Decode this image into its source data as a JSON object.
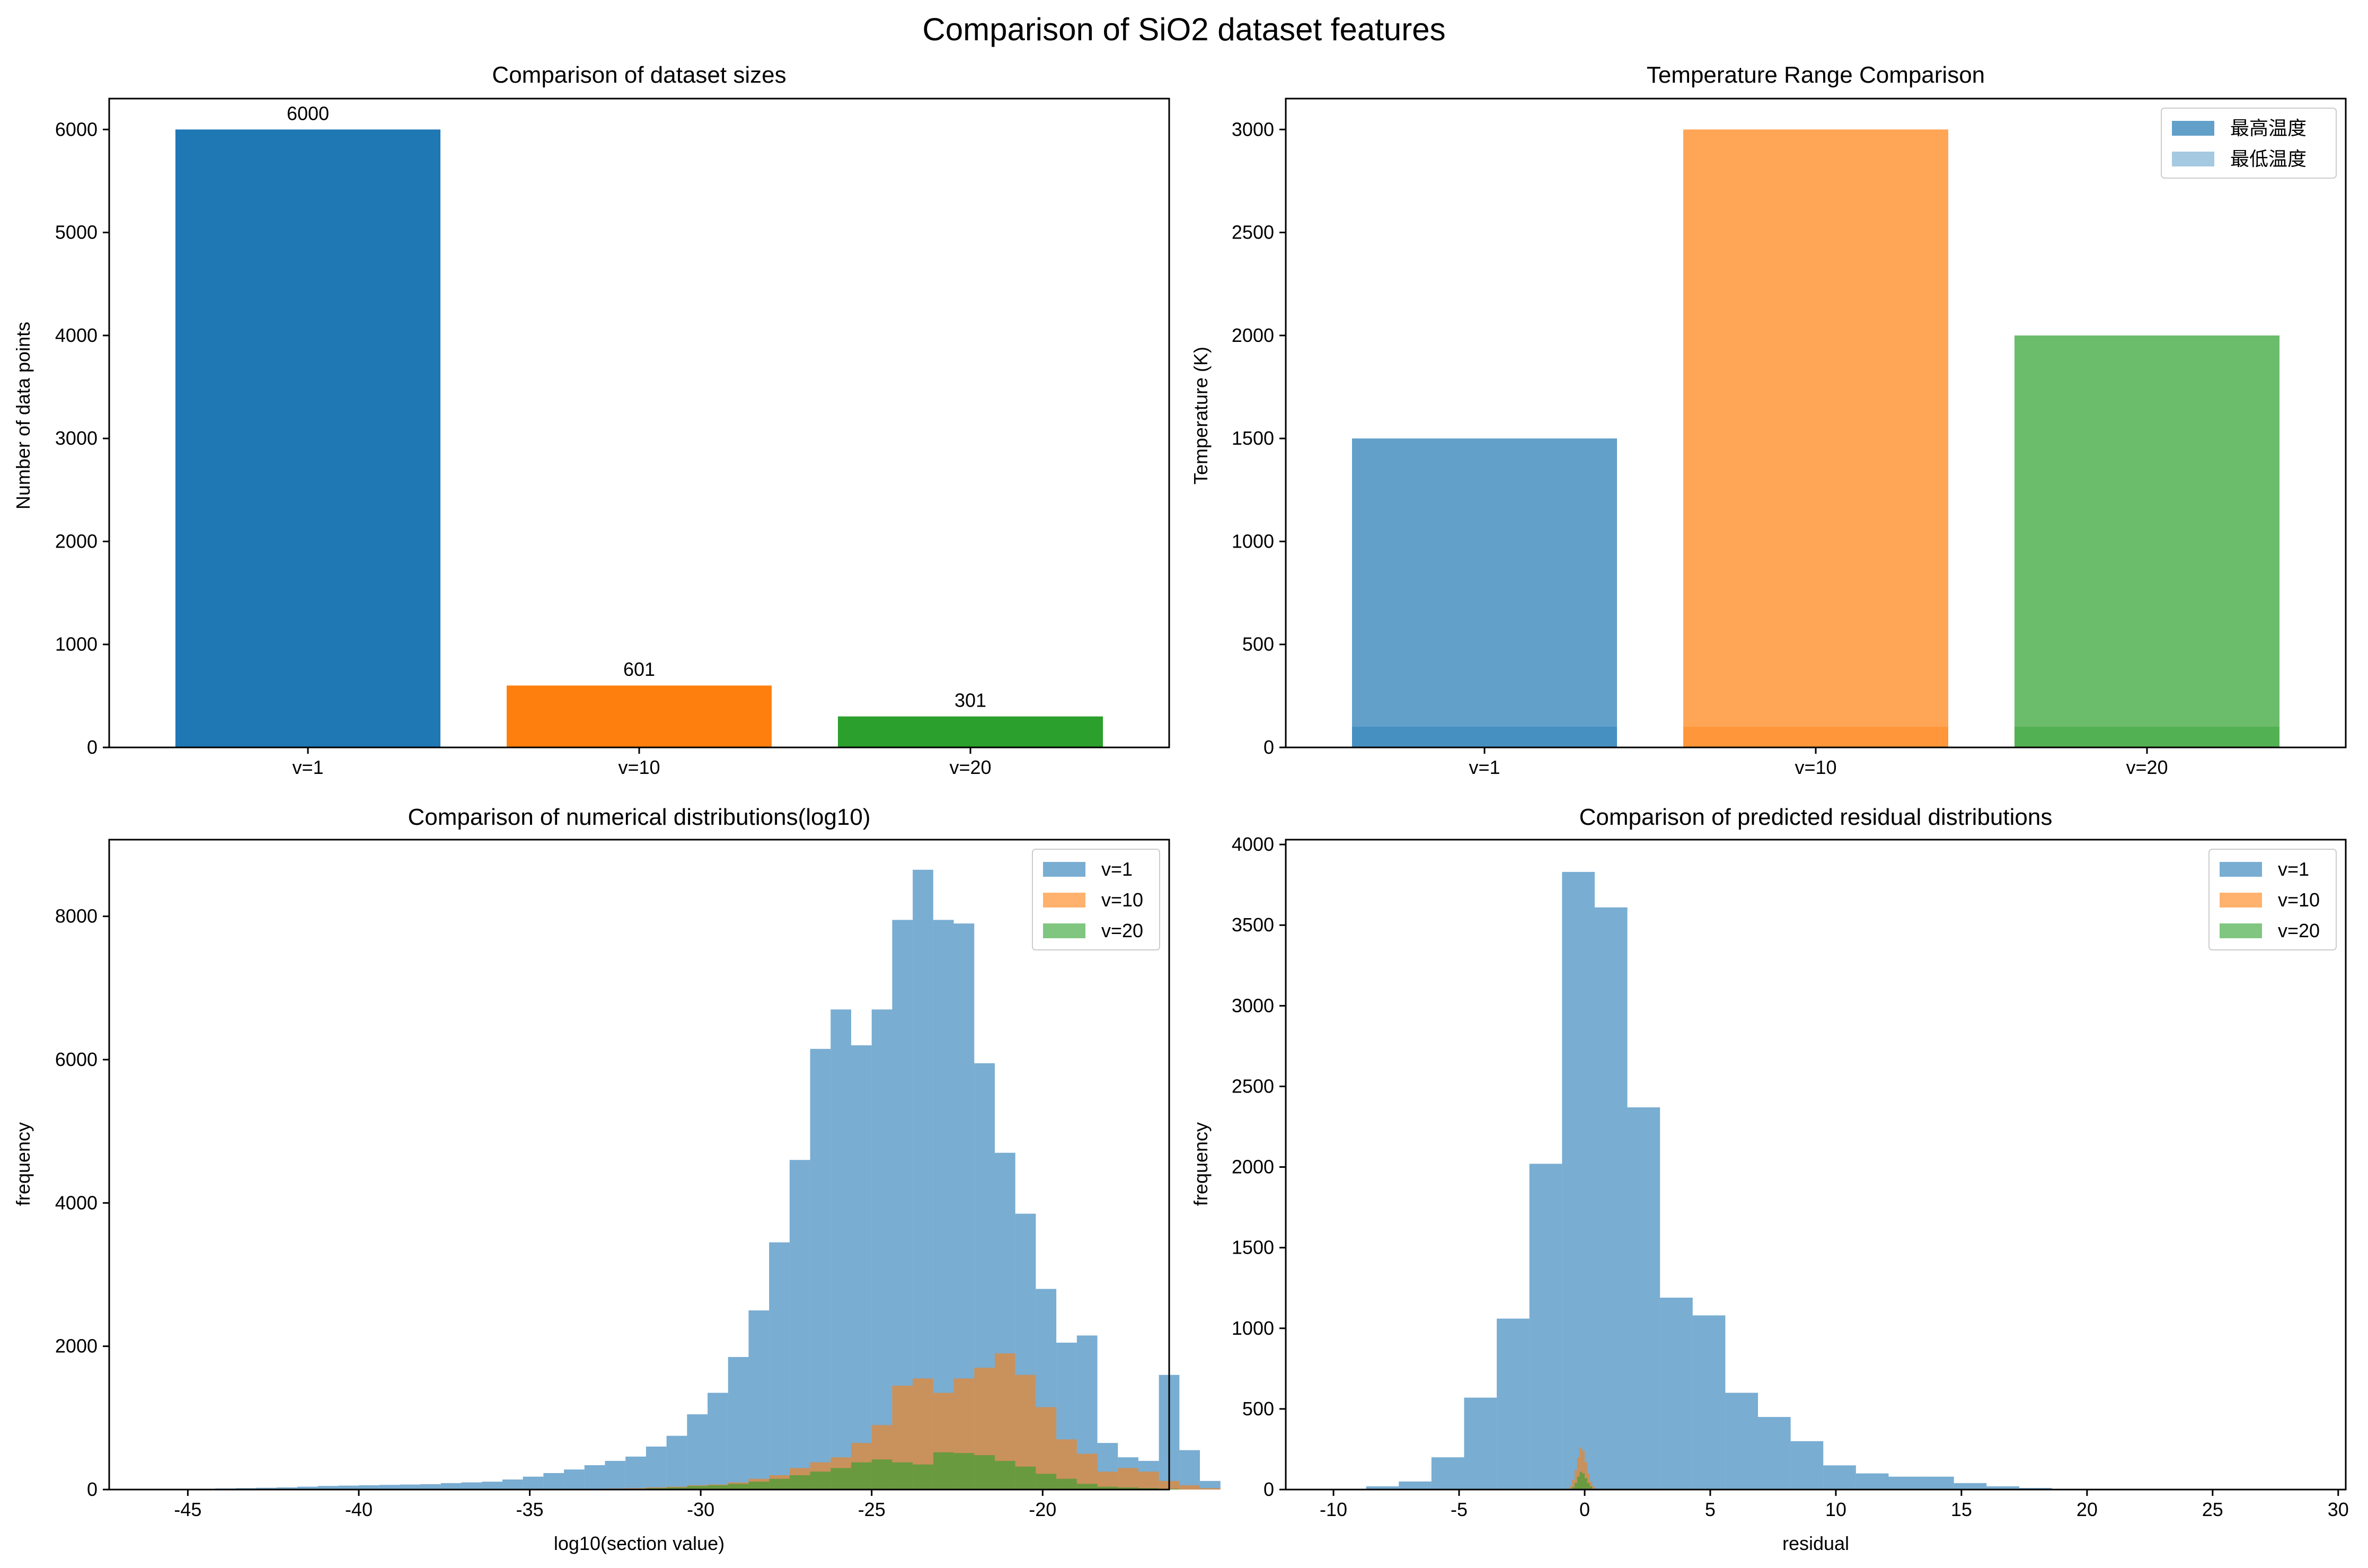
{
  "figure": {
    "title": "Comparison of SiO2 dataset features",
    "colors": {
      "blue": "#1f77b4",
      "orange": "#ff7f0e",
      "green": "#2ca02c"
    }
  },
  "chart_data": [
    {
      "type": "bar",
      "title": "Comparison of dataset sizes",
      "xlabel": "",
      "ylabel": "Number of data points",
      "categories": [
        "v=1",
        "v=10",
        "v=20"
      ],
      "values": [
        6000,
        601,
        301
      ],
      "data_labels": [
        "6000",
        "601",
        "301"
      ],
      "colors": [
        "#1f77b4",
        "#ff7f0e",
        "#2ca02c"
      ],
      "ylim": [
        0,
        6300
      ],
      "yticks": [
        0,
        1000,
        2000,
        3000,
        4000,
        5000,
        6000
      ],
      "grid": false
    },
    {
      "type": "bar",
      "title": "Temperature Range Comparison",
      "xlabel": "",
      "ylabel": "Temperature (K)",
      "categories": [
        "v=1",
        "v=10",
        "v=20"
      ],
      "series": [
        {
          "name": "最高温度",
          "values": [
            1500,
            3000,
            2000
          ],
          "alpha": 0.7
        },
        {
          "name": "最低温度",
          "values": [
            100,
            100,
            100
          ],
          "alpha": 0.4
        }
      ],
      "colors": [
        "#1f77b4",
        "#ff7f0e",
        "#2ca02c"
      ],
      "ylim": [
        0,
        3150
      ],
      "yticks": [
        0,
        500,
        1000,
        1500,
        2000,
        2500,
        3000
      ],
      "legend": "top-right",
      "grid": false
    },
    {
      "type": "histogram",
      "title": "Comparison of numerical distributions(log10)",
      "xlabel": "log10(section value)",
      "ylabel": "frequency",
      "xlim": [
        -47.3,
        -16.3
      ],
      "ylim": [
        0,
        9070
      ],
      "xticks": [
        -45,
        -40,
        -35,
        -30,
        -25,
        -20
      ],
      "yticks": [
        0,
        2000,
        4000,
        6000,
        8000
      ],
      "legend": "top-right",
      "alpha": 0.6,
      "bins": {
        "start": -46.0,
        "width": 0.6
      },
      "series": [
        {
          "name": "v=1",
          "color": "#1f77b4",
          "counts": [
            5,
            5,
            10,
            15,
            20,
            25,
            30,
            40,
            50,
            55,
            60,
            65,
            70,
            75,
            90,
            100,
            110,
            140,
            180,
            230,
            280,
            340,
            400,
            460,
            600,
            750,
            1050,
            1350,
            1850,
            2500,
            3450,
            4600,
            6150,
            6700,
            6200,
            6700,
            7950,
            8650,
            7950,
            7900,
            5950,
            4700,
            3850,
            2800,
            2050,
            2150,
            650,
            450,
            400,
            1600,
            550,
            120
          ]
        },
        {
          "name": "v=10",
          "color": "#ff7f0e",
          "counts": [
            0,
            0,
            0,
            0,
            0,
            0,
            0,
            0,
            0,
            0,
            0,
            0,
            0,
            0,
            0,
            0,
            0,
            0,
            0,
            0,
            0,
            10,
            15,
            20,
            30,
            40,
            60,
            70,
            100,
            150,
            200,
            300,
            380,
            450,
            650,
            900,
            1450,
            1550,
            1350,
            1550,
            1700,
            1900,
            1600,
            1150,
            700,
            500,
            250,
            300,
            250,
            120,
            60,
            20
          ]
        },
        {
          "name": "v=20",
          "color": "#2ca02c",
          "counts": [
            0,
            0,
            0,
            0,
            0,
            0,
            0,
            0,
            0,
            0,
            0,
            0,
            0,
            0,
            0,
            0,
            0,
            0,
            0,
            0,
            0,
            0,
            0,
            10,
            20,
            30,
            50,
            60,
            80,
            110,
            150,
            200,
            250,
            300,
            380,
            420,
            380,
            350,
            520,
            510,
            480,
            400,
            320,
            220,
            150,
            80,
            40,
            30,
            20,
            10,
            0,
            0
          ]
        }
      ]
    },
    {
      "type": "histogram",
      "title": "Comparison of predicted residual distributions",
      "xlabel": "residual",
      "ylabel": "frequency",
      "xlim": [
        -11.9,
        30.3
      ],
      "ylim": [
        0,
        4030
      ],
      "xticks": [
        -10,
        -5,
        0,
        5,
        10,
        15,
        20,
        25,
        30
      ],
      "yticks": [
        0,
        500,
        1000,
        1500,
        2000,
        2500,
        3000,
        3500,
        4000
      ],
      "legend": "top-right",
      "alpha": 0.6,
      "series": [
        {
          "name": "v=1",
          "color": "#1f77b4",
          "bins": {
            "start": -10.0,
            "width": 1.3
          },
          "counts": [
            5,
            20,
            50,
            200,
            570,
            1060,
            2020,
            3830,
            3610,
            2370,
            1190,
            1080,
            600,
            450,
            300,
            150,
            100,
            80,
            80,
            40,
            20,
            10,
            5,
            5,
            3,
            2,
            1,
            1,
            0,
            1,
            1
          ]
        },
        {
          "name": "v=10",
          "color": "#ff7f0e",
          "bins": {
            "start": -0.8,
            "width": 0.1
          },
          "counts": [
            0,
            5,
            20,
            60,
            120,
            200,
            260,
            240,
            170,
            100,
            50,
            20,
            5,
            0,
            0,
            0
          ]
        },
        {
          "name": "v=20",
          "color": "#2ca02c",
          "bins": {
            "start": -0.7,
            "width": 0.1
          },
          "counts": [
            0,
            5,
            15,
            40,
            80,
            110,
            100,
            70,
            40,
            20,
            5,
            0,
            0,
            0
          ]
        }
      ]
    }
  ]
}
